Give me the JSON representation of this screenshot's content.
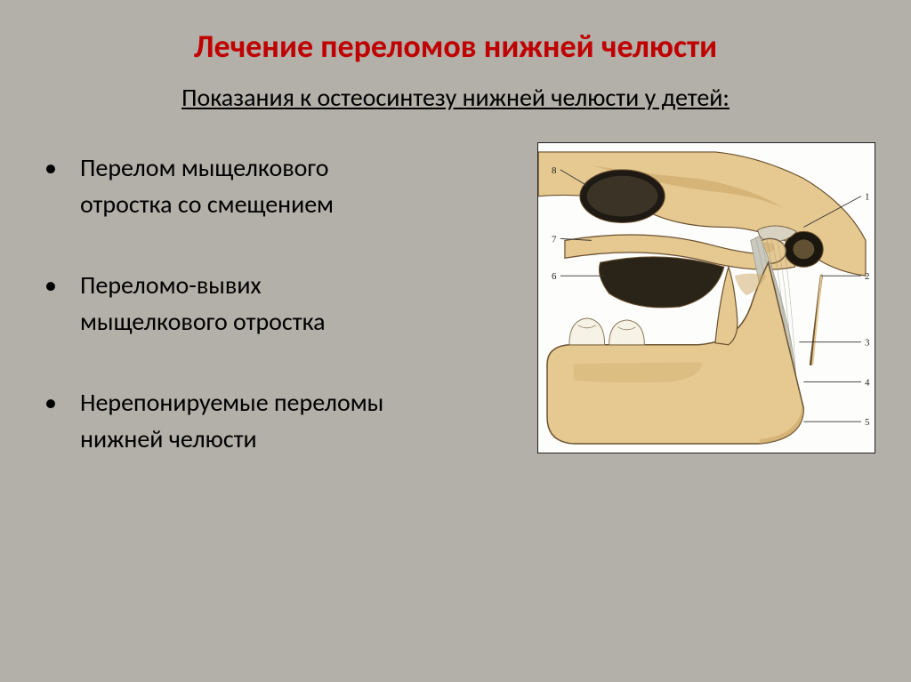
{
  "slide": {
    "title": "Лечение переломов нижней челюсти",
    "subtitle": "Показания к остеосинтезу нижней челюсти у детей:",
    "bullets": [
      {
        "line1": "Перелом мыщелкового",
        "line2": "отростка со смещением"
      },
      {
        "line1": "Переломо-вывих",
        "line2": "мыщелкового отростка"
      },
      {
        "line1": "Нерепонируемые переломы",
        "line2": "нижней челюсти"
      }
    ]
  },
  "figure": {
    "type": "anatomical-illustration",
    "background_color": "#fdfdfb",
    "border_color": "#222222",
    "bone_fill": "#e5c991",
    "bone_shade": "#cba767",
    "bone_outline": "#6b5130",
    "cartilage_fill": "#d8d2c2",
    "ligament_fill": "#c9c8bc",
    "ligament_shade": "#9e9c8e",
    "tooth_fill": "#f6f2e6",
    "tooth_outline": "#8a7a5a",
    "leader_color": "#333333",
    "callouts": [
      "1",
      "2",
      "3",
      "4",
      "5",
      "6",
      "7",
      "8"
    ]
  }
}
